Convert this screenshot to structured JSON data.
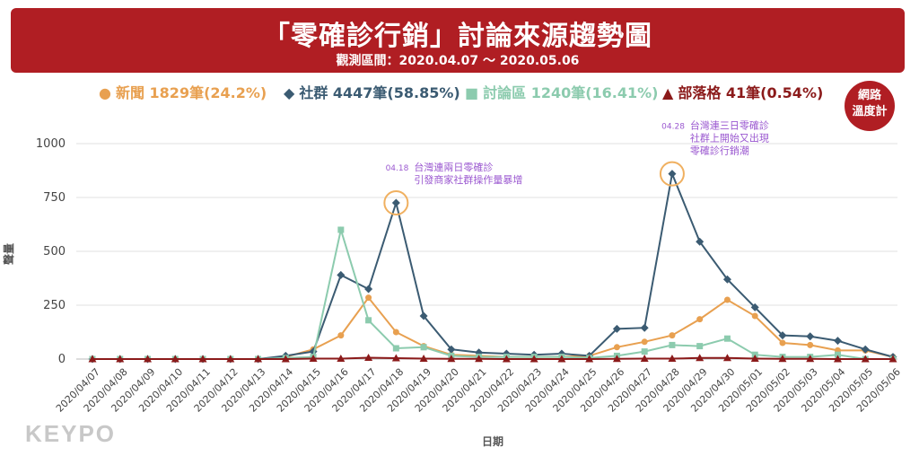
{
  "header": {
    "title": "「零確診行銷」討論來源趨勢圖",
    "subtitle": "觀測區間：2020.04.07 ～ 2020.05.06"
  },
  "badge": {
    "line1": "網路",
    "line2": "溫度計"
  },
  "logo": "KEYPO",
  "colors": {
    "banner": "#b01e23",
    "news": "#e8a050",
    "social": "#3b5b72",
    "forum": "#8ccbae",
    "blog": "#8b1a1a",
    "annotation": "#9b59d0"
  },
  "chart_data": {
    "type": "line",
    "xlabel": "日期",
    "ylabel": "聲量",
    "ylim": [
      0,
      1000
    ],
    "yticks": [
      0,
      250,
      500,
      750,
      1000
    ],
    "grid": "horizontal",
    "legend_position": "top",
    "x": [
      "2020/04/07",
      "2020/04/08",
      "2020/04/09",
      "2020/04/10",
      "2020/04/11",
      "2020/04/12",
      "2020/04/13",
      "2020/04/14",
      "2020/04/15",
      "2020/04/16",
      "2020/04/17",
      "2020/04/18",
      "2020/04/19",
      "2020/04/20",
      "2020/04/21",
      "2020/04/22",
      "2020/04/23",
      "2020/04/24",
      "2020/04/25",
      "2020/04/26",
      "2020/04/27",
      "2020/04/28",
      "2020/04/29",
      "2020/04/30",
      "2020/05/01",
      "2020/05/02",
      "2020/05/03",
      "2020/05/04",
      "2020/05/05",
      "2020/05/06"
    ],
    "series": [
      {
        "name": "新聞",
        "legend": "新聞 1829筆(24.2%)",
        "marker": "circle",
        "color": "#e8a050",
        "values": [
          0,
          0,
          0,
          0,
          0,
          0,
          0,
          10,
          45,
          110,
          285,
          125,
          60,
          20,
          15,
          10,
          10,
          10,
          15,
          55,
          80,
          110,
          185,
          275,
          200,
          75,
          65,
          40,
          40,
          10
        ]
      },
      {
        "name": "社群",
        "legend": "社群 4447筆(58.85%)",
        "marker": "diamond",
        "color": "#3b5b72",
        "values": [
          0,
          0,
          0,
          0,
          0,
          0,
          0,
          15,
          35,
          390,
          325,
          725,
          200,
          45,
          30,
          25,
          20,
          25,
          15,
          140,
          145,
          860,
          545,
          370,
          240,
          110,
          105,
          85,
          45,
          10
        ]
      },
      {
        "name": "討論區",
        "legend": "討論區 1240筆(16.41%)",
        "marker": "square",
        "color": "#8ccbae",
        "values": [
          0,
          0,
          0,
          0,
          0,
          0,
          0,
          5,
          10,
          600,
          180,
          50,
          55,
          15,
          10,
          10,
          10,
          10,
          5,
          15,
          35,
          65,
          60,
          95,
          20,
          10,
          10,
          20,
          0,
          0
        ]
      },
      {
        "name": "部落格",
        "legend": "部落格 41筆(0.54%)",
        "marker": "triangle",
        "color": "#8b1a1a",
        "values": [
          0,
          0,
          0,
          0,
          0,
          0,
          0,
          0,
          2,
          2,
          6,
          4,
          2,
          1,
          1,
          0,
          0,
          0,
          0,
          1,
          2,
          2,
          5,
          5,
          2,
          1,
          1,
          0,
          0,
          0
        ]
      }
    ],
    "annotations": [
      {
        "x": "2020/04/18",
        "y": 725,
        "date": "04.18",
        "lines": [
          "台灣連兩日零確診",
          "引發商家社群操作量暴增"
        ]
      },
      {
        "x": "2020/04/28",
        "y": 860,
        "date": "04.28",
        "lines": [
          "台灣連三日零確診",
          "社群上開始又出現",
          "零確診行銷潮"
        ]
      }
    ]
  }
}
